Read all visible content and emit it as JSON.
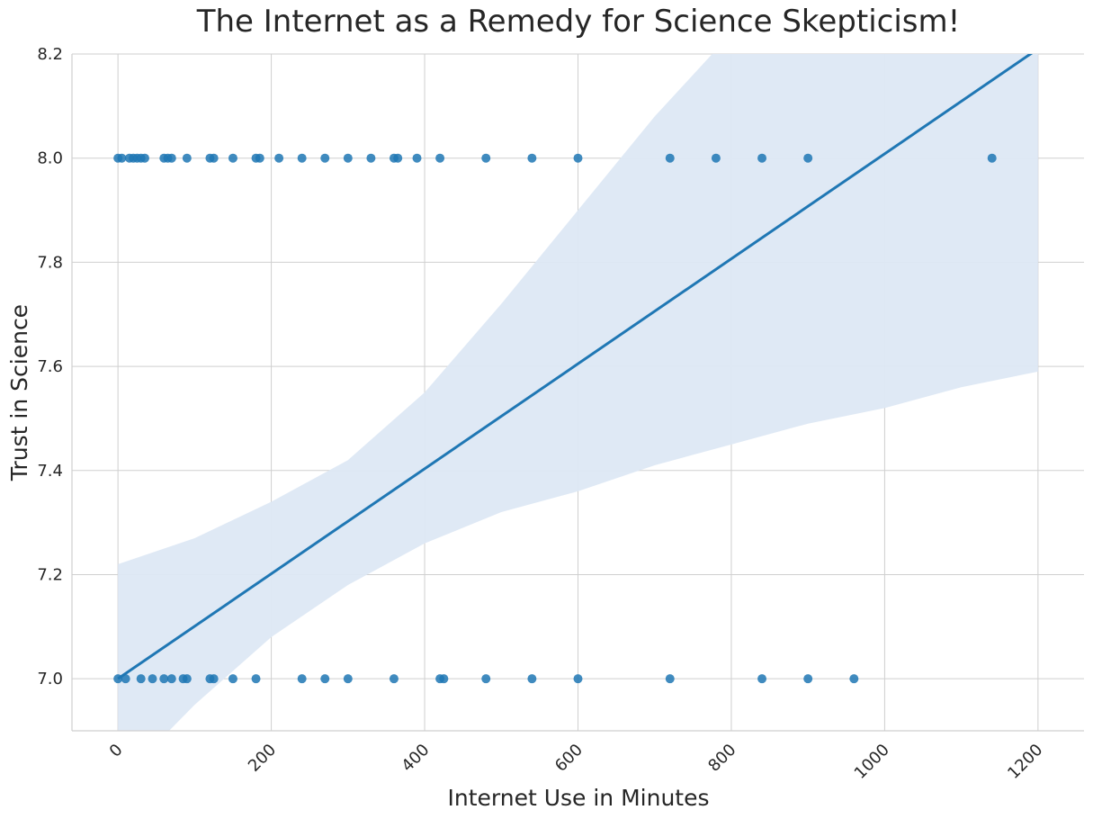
{
  "chart_data": {
    "type": "scatter",
    "title": "The Internet as a Remedy for Science Skepticism!",
    "xlabel": "Internet Use in Minutes",
    "ylabel": "Trust in Science",
    "xlim": [
      -60,
      1260
    ],
    "ylim": [
      6.9,
      8.2
    ],
    "xticks": [
      0,
      200,
      400,
      600,
      800,
      1000,
      1200
    ],
    "yticks": [
      7.0,
      7.2,
      7.4,
      7.6,
      7.8,
      8.0,
      8.2
    ],
    "xtick_labels": [
      "0",
      "200",
      "400",
      "600",
      "800",
      "1000",
      "1200"
    ],
    "ytick_labels": [
      "7.0",
      "7.2",
      "7.4",
      "7.6",
      "7.8",
      "8.0",
      "8.2"
    ],
    "grid": true,
    "colors": {
      "points": "#1f77b4",
      "line": "#1f77b4",
      "band": "#dde8f4",
      "grid": "#cfcfcf",
      "text": "#262626"
    },
    "series": [
      {
        "kind": "points",
        "x": [
          0,
          5,
          15,
          20,
          25,
          30,
          35,
          60,
          65,
          70,
          90,
          120,
          125,
          150,
          180,
          185,
          210,
          240,
          270,
          300,
          330,
          360,
          365,
          390,
          420,
          480,
          540,
          600,
          720,
          780,
          840,
          900,
          1140,
          0,
          10,
          30,
          45,
          60,
          70,
          85,
          90,
          120,
          125,
          150,
          180,
          240,
          270,
          300,
          360,
          420,
          425,
          480,
          540,
          600,
          720,
          840,
          900,
          960
        ],
        "y": [
          8,
          8,
          8,
          8,
          8,
          8,
          8,
          8,
          8,
          8,
          8,
          8,
          8,
          8,
          8,
          8,
          8,
          8,
          8,
          8,
          8,
          8,
          8,
          8,
          8,
          8,
          8,
          8,
          8,
          8,
          8,
          8,
          8,
          7,
          7,
          7,
          7,
          7,
          7,
          7,
          7,
          7,
          7,
          7,
          7,
          7,
          7,
          7,
          7,
          7,
          7,
          7,
          7,
          7,
          7,
          7,
          7,
          7
        ]
      },
      {
        "kind": "regression-line",
        "x": [
          0,
          1200
        ],
        "y": [
          7.0,
          8.21
        ]
      },
      {
        "kind": "confidence-band",
        "x": [
          0,
          100,
          200,
          300,
          400,
          500,
          600,
          700,
          800,
          900,
          1000,
          1100,
          1200
        ],
        "upper": [
          7.22,
          7.27,
          7.34,
          7.42,
          7.55,
          7.72,
          7.9,
          8.08,
          8.24,
          8.4,
          8.56,
          8.72,
          8.88
        ],
        "lower": [
          6.8,
          6.95,
          7.08,
          7.18,
          7.26,
          7.32,
          7.36,
          7.41,
          7.45,
          7.49,
          7.52,
          7.56,
          7.59
        ]
      }
    ]
  }
}
